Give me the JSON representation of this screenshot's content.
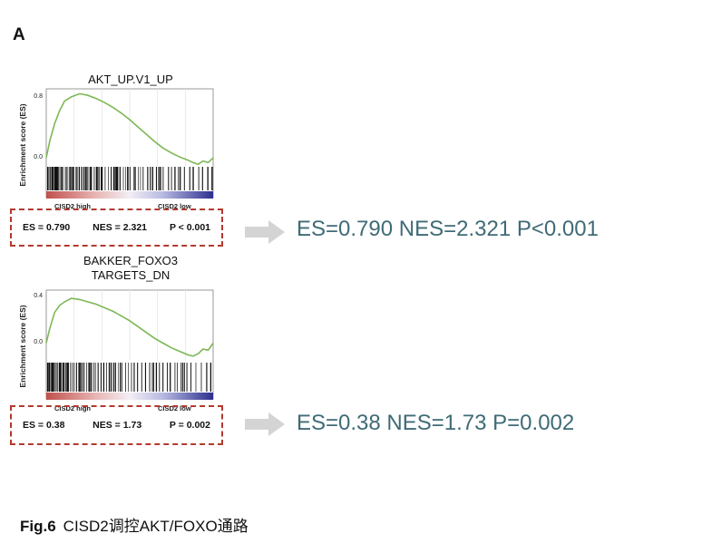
{
  "panel_label": "A",
  "chart_data": [
    {
      "type": "line",
      "title": "AKT_UP.V1_UP",
      "ylabel": "Enrichment score (ES)",
      "ylim": [
        -0.1,
        0.85
      ],
      "yticks": [
        "0.8",
        "0.0"
      ],
      "phenotype_labels": [
        "CISD2 high",
        "CISD2 low"
      ],
      "x": [
        0,
        0.02,
        0.05,
        0.08,
        0.11,
        0.15,
        0.2,
        0.25,
        0.3,
        0.35,
        0.4,
        0.45,
        0.5,
        0.55,
        0.6,
        0.65,
        0.7,
        0.75,
        0.8,
        0.85,
        0.88,
        0.91,
        0.94,
        0.97,
        1.0
      ],
      "values": [
        0.0,
        0.2,
        0.42,
        0.58,
        0.7,
        0.75,
        0.79,
        0.77,
        0.73,
        0.68,
        0.62,
        0.55,
        0.47,
        0.38,
        0.29,
        0.2,
        0.12,
        0.06,
        0.01,
        -0.03,
        -0.06,
        -0.08,
        -0.04,
        -0.06,
        0.0
      ],
      "stats": {
        "es": "ES = 0.790",
        "nes": "NES = 2.321",
        "p": "P < 0.001"
      }
    },
    {
      "type": "line",
      "title_line1": "BAKKER_FOXO3",
      "title_line2": "TARGETS_DN",
      "ylabel": "Enrichment score (ES)",
      "ylim": [
        -0.15,
        0.45
      ],
      "yticks": [
        "0.4",
        "0.0"
      ],
      "phenotype_labels": [
        "CISD2 high",
        "CISD2 low"
      ],
      "x": [
        0,
        0.02,
        0.05,
        0.08,
        0.11,
        0.15,
        0.2,
        0.25,
        0.3,
        0.35,
        0.4,
        0.45,
        0.5,
        0.55,
        0.6,
        0.65,
        0.7,
        0.75,
        0.8,
        0.85,
        0.88,
        0.91,
        0.94,
        0.97,
        1.0
      ],
      "values": [
        0.0,
        0.12,
        0.26,
        0.32,
        0.35,
        0.38,
        0.37,
        0.35,
        0.33,
        0.3,
        0.27,
        0.23,
        0.19,
        0.14,
        0.09,
        0.04,
        0.0,
        -0.04,
        -0.07,
        -0.1,
        -0.11,
        -0.09,
        -0.05,
        -0.06,
        0.0
      ],
      "stats": {
        "es": "ES = 0.38",
        "nes": "NES = 1.73",
        "p": "P = 0.002"
      }
    }
  ],
  "callouts": [
    "ES=0.790 NES=2.321 P<0.001",
    "ES=0.38 NES=1.73 P=0.002"
  ],
  "caption": {
    "label": "Fig.6",
    "text": "CISD2调控AKT/FOXO通路"
  },
  "colors": {
    "curve": "#7cb855",
    "box_border": "#b23a2e",
    "callout_text": "#3f6b76",
    "arrow": "#d4d4d4"
  }
}
